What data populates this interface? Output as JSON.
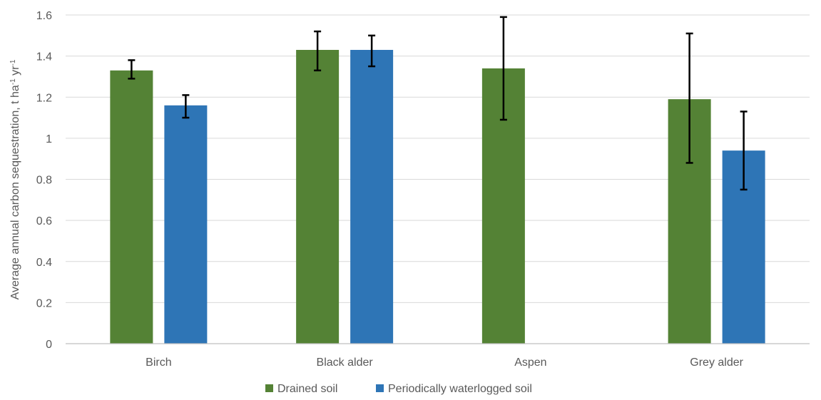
{
  "chart_data": {
    "type": "bar",
    "categories": [
      "Birch",
      "Black alder",
      "Aspen",
      "Grey alder"
    ],
    "series": [
      {
        "name": "Drained soil",
        "color": "#548235",
        "values": [
          1.33,
          1.43,
          1.34,
          1.19
        ],
        "error_low": [
          1.29,
          1.33,
          1.09,
          0.88
        ],
        "error_high": [
          1.38,
          1.52,
          1.59,
          1.51
        ]
      },
      {
        "name": "Periodically waterlogged soil",
        "color": "#2E75B6",
        "values": [
          1.16,
          1.43,
          null,
          0.94
        ],
        "error_low": [
          1.1,
          1.35,
          null,
          0.75
        ],
        "error_high": [
          1.21,
          1.5,
          null,
          1.13
        ]
      }
    ],
    "ylabel": {
      "main": "Average annual carbon sequestration, t ha",
      "sup1": "-1",
      "mid": " yr",
      "sup2": "-1"
    },
    "xlabel": "",
    "ylim": [
      0,
      1.6
    ],
    "yticks": [
      "0",
      "0.2",
      "0.4",
      "0.6",
      "0.8",
      "1",
      "1.2",
      "1.4",
      "1.6"
    ],
    "grid": true,
    "legend_position": "bottom-center"
  }
}
